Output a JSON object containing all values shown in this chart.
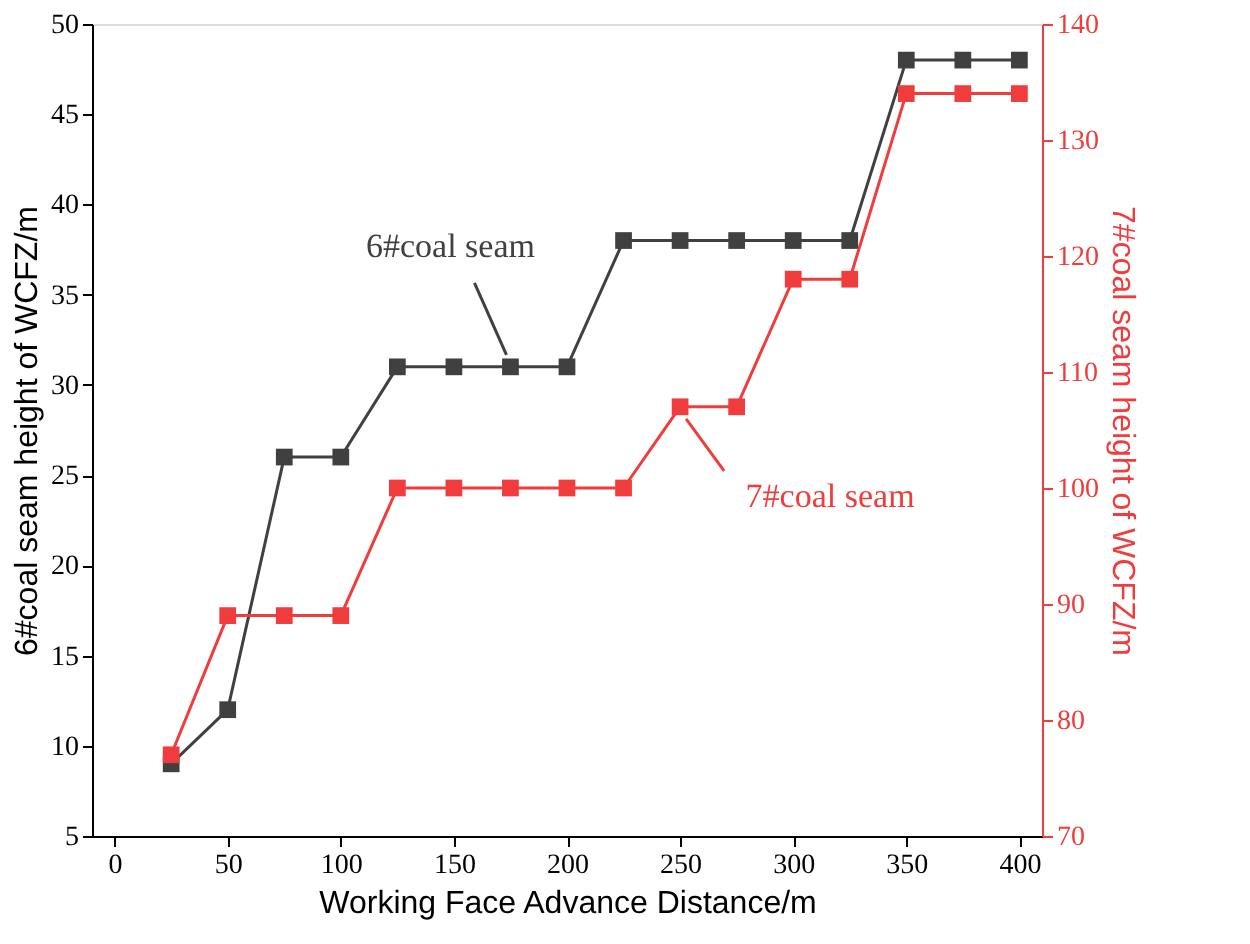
{
  "chart_data": {
    "type": "line",
    "xlabel": "Working Face Advance Distance/m",
    "ylabel": "6#coal seam height of WCFZ/m",
    "y2label": "7#coal seam height of WCFZ/m",
    "x": [
      25,
      50,
      75,
      100,
      125,
      150,
      175,
      200,
      225,
      250,
      275,
      300,
      325,
      350,
      375,
      400
    ],
    "series": [
      {
        "name": "6#coal seam",
        "color": "#404040",
        "values": [
          9,
          12,
          26,
          26,
          31,
          31,
          31,
          31,
          38,
          38,
          38,
          38,
          38,
          48,
          48,
          48
        ]
      },
      {
        "name": "7#coal seam",
        "color": "#f03c3c",
        "axis": "y2",
        "values": [
          77,
          89,
          89,
          89,
          100,
          100,
          100,
          100,
          100,
          107,
          107,
          118,
          118,
          134,
          134,
          134
        ]
      }
    ],
    "xlim": [
      -10,
      410
    ],
    "xticks": [
      0,
      50,
      100,
      150,
      200,
      250,
      300,
      350,
      400
    ],
    "ylim": [
      5,
      50
    ],
    "yticks": [
      5,
      10,
      15,
      20,
      25,
      30,
      35,
      40,
      45,
      50
    ],
    "y2lim": [
      70,
      140
    ],
    "y2ticks": [
      70,
      80,
      90,
      100,
      110,
      120,
      130,
      140
    ],
    "marker": "square",
    "line_style": "solid",
    "grid": false,
    "legend": false
  }
}
